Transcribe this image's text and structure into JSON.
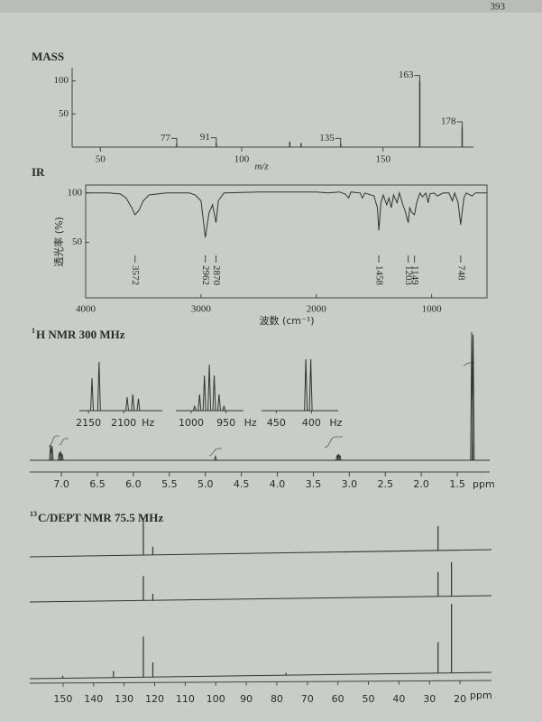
{
  "header": {
    "page_number": "393"
  },
  "chart_data": [
    {
      "type": "bar",
      "title": "MASS",
      "xlabel": "m/z",
      "x": [
        77,
        91,
        117,
        121,
        135,
        163,
        178
      ],
      "values": [
        5,
        6,
        8,
        6,
        5,
        100,
        30
      ],
      "labeled": [
        true,
        true,
        false,
        false,
        true,
        true,
        true
      ],
      "xlim": [
        40,
        182
      ],
      "xticks": [
        50,
        100,
        150
      ],
      "ylim": [
        0,
        120
      ],
      "yticks": [
        50,
        100
      ],
      "color": "#333333"
    },
    {
      "type": "line",
      "title": "IR",
      "xlabel": "波数 (cm⁻¹)",
      "ylabel": "透光率 (%)",
      "x": [
        4000,
        3800,
        3700,
        3650,
        3600,
        3572,
        3540,
        3500,
        3450,
        3300,
        3100,
        3050,
        3000,
        2962,
        2930,
        2900,
        2870,
        2850,
        2800,
        2500,
        2000,
        1900,
        1800,
        1750,
        1720,
        1700,
        1620,
        1600,
        1580,
        1500,
        1470,
        1458,
        1440,
        1420,
        1390,
        1370,
        1350,
        1330,
        1300,
        1280,
        1250,
        1230,
        1203,
        1190,
        1170,
        1149,
        1130,
        1100,
        1080,
        1050,
        1030,
        1015,
        980,
        950,
        900,
        850,
        820,
        800,
        770,
        748,
        720,
        700,
        650,
        620,
        520
      ],
      "values": [
        100,
        100,
        99,
        95,
        85,
        78,
        82,
        92,
        98,
        100,
        100,
        98,
        92,
        55,
        80,
        88,
        70,
        92,
        100,
        101,
        101,
        100,
        101,
        99,
        95,
        101,
        100,
        95,
        100,
        97,
        85,
        62,
        90,
        98,
        88,
        95,
        85,
        98,
        90,
        100,
        88,
        82,
        70,
        85,
        80,
        78,
        90,
        100,
        96,
        100,
        90,
        99,
        100,
        97,
        100,
        100,
        92,
        100,
        90,
        68,
        95,
        100,
        97,
        100,
        100
      ],
      "peak_labels": [
        3572,
        2962,
        2870,
        1458,
        1203,
        1149,
        748
      ],
      "xlim": [
        4000,
        520
      ],
      "xticks": [
        4000,
        3000,
        2000,
        1000
      ],
      "ylim": [
        -6,
        108
      ],
      "yticks": [
        50,
        100
      ],
      "color": "#333333"
    },
    {
      "type": "nmr",
      "title_sup": "1",
      "title": "H NMR 300 MHz",
      "xlabel": "ppm",
      "x": [
        7.15,
        7.13,
        7.03,
        7.01,
        6.99,
        4.86,
        3.17,
        3.15,
        3.13,
        1.3,
        1.28
      ],
      "values": [
        12,
        11,
        6,
        7,
        5,
        3,
        4,
        5,
        4,
        100,
        98
      ],
      "xlim": [
        7.44,
        1.05
      ],
      "xticks": [
        {
          "value": 7,
          "label": "7.0"
        },
        6.5,
        {
          "value": 6,
          "label": "6.0"
        },
        5.5,
        {
          "value": 5,
          "label": "5.0"
        },
        4.5,
        {
          "value": 4,
          "label": "4.0"
        },
        3.5,
        {
          "value": 3,
          "label": "3.0"
        },
        2.5,
        {
          "value": 2,
          "label": "2.0"
        },
        1.5
      ],
      "insets": [
        {
          "xlim": [
            2163,
            2045
          ],
          "xticks": [
            2150,
            2100
          ],
          "unit": "Hz",
          "x": [
            2145,
            2135,
            2095,
            2087,
            2079
          ],
          "values": [
            60,
            90,
            25,
            30,
            22
          ]
        },
        {
          "xlim": [
            1022,
            925
          ],
          "xticks": [
            1000,
            950
          ],
          "unit": "Hz",
          "x": [
            995,
            988,
            981,
            974,
            967,
            960,
            953
          ],
          "values": [
            8,
            30,
            65,
            85,
            65,
            30,
            8
          ]
        },
        {
          "xlim": [
            471,
            362
          ],
          "xticks": [
            450,
            400
          ],
          "unit": "Hz",
          "x": [
            408,
            401
          ],
          "values": [
            95,
            95
          ]
        }
      ],
      "color": "#333333"
    },
    {
      "type": "nmr-stack",
      "title_sup": "13",
      "title": "C/DEPT NMR 75.5 MHz",
      "xlabel": "ppm",
      "xlim": [
        160.9,
        9.7
      ],
      "xticks": [
        150,
        140,
        130,
        120,
        110,
        100,
        90,
        80,
        70,
        60,
        50,
        40,
        30,
        20
      ],
      "panels": [
        {
          "x": [
            123.7,
            120.6,
            27.2
          ],
          "values": [
            45,
            10,
            30
          ]
        },
        {
          "x": [
            123.7,
            120.6,
            27.2,
            22.8
          ],
          "values": [
            30,
            8,
            30,
            42
          ]
        },
        {
          "x": [
            150.1,
            133.5,
            123.7,
            120.6,
            77,
            27.2,
            22.8
          ],
          "values": [
            3,
            8,
            50,
            18,
            3,
            38,
            85
          ]
        }
      ],
      "color": "#333333"
    }
  ]
}
